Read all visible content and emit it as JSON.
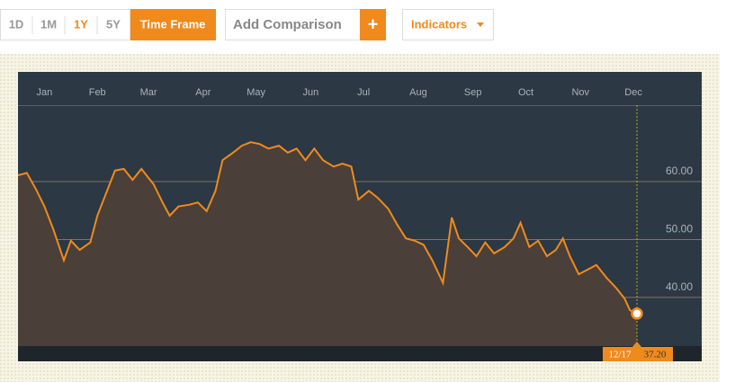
{
  "toolbar": {
    "ranges": [
      "1D",
      "1M",
      "1Y",
      "5Y"
    ],
    "time_frame": "Time Frame",
    "add_comparison": "Add Comparison",
    "plus": "+",
    "indicators": "Indicators"
  },
  "chart_data": {
    "type": "area",
    "color": "#f08a1c",
    "fill": "#4a4039",
    "x": [
      0,
      5,
      10,
      15,
      20,
      26,
      30,
      35,
      41,
      45,
      50,
      55,
      60,
      65,
      70,
      77,
      82,
      86,
      91,
      97,
      102,
      107,
      112,
      116,
      122,
      127,
      132,
      137,
      142,
      148,
      153,
      158,
      163,
      168,
      173,
      179,
      184,
      189,
      193,
      199,
      204,
      210,
      215,
      220,
      225,
      230,
      235,
      241,
      246,
      250,
      255,
      260,
      265,
      270,
      276,
      281,
      285,
      290,
      295,
      300,
      305,
      309,
      313,
      318,
      323,
      328,
      334,
      339,
      344,
      347,
      351
    ],
    "values": [
      61.1,
      61.5,
      58.8,
      55.7,
      51.8,
      46.4,
      49.8,
      48.2,
      49.5,
      54.1,
      58.0,
      61.9,
      62.2,
      60.3,
      62.2,
      59.5,
      56.4,
      54.1,
      55.7,
      56.0,
      56.4,
      54.9,
      58.4,
      63.7,
      65.0,
      66.2,
      66.8,
      66.5,
      65.7,
      66.2,
      65.0,
      65.7,
      63.7,
      65.7,
      63.7,
      62.6,
      63.1,
      62.6,
      56.9,
      58.4,
      57.2,
      55.3,
      52.6,
      50.2,
      49.8,
      49.1,
      46.4,
      42.5,
      53.8,
      50.2,
      48.7,
      47.1,
      49.5,
      47.6,
      48.7,
      50.2,
      52.9,
      48.7,
      49.8,
      47.1,
      48.2,
      50.2,
      47.1,
      44.0,
      44.8,
      45.6,
      43.3,
      41.7,
      39.8,
      37.8,
      37.2
    ],
    "xlim": [
      0,
      351
    ],
    "xticks": [
      {
        "value": 15,
        "label": "Jan"
      },
      {
        "value": 45,
        "label": "Feb"
      },
      {
        "value": 74,
        "label": "Mar"
      },
      {
        "value": 105,
        "label": "Apr"
      },
      {
        "value": 135,
        "label": "May"
      },
      {
        "value": 166,
        "label": "Jun"
      },
      {
        "value": 196,
        "label": "Jul"
      },
      {
        "value": 227,
        "label": "Aug"
      },
      {
        "value": 258,
        "label": "Sep"
      },
      {
        "value": 288,
        "label": "Oct"
      },
      {
        "value": 319,
        "label": "Nov"
      },
      {
        "value": 349,
        "label": "Dec"
      }
    ],
    "ylim": [
      31.6,
      73.2
    ],
    "yticks": [
      {
        "value": 40,
        "label": "40.00"
      },
      {
        "value": 50,
        "label": "50.00"
      },
      {
        "value": 60,
        "label": "60.00"
      }
    ],
    "grid": true,
    "end_marker": {
      "date": "12/17",
      "value": 37.2,
      "label": "37.20"
    }
  }
}
